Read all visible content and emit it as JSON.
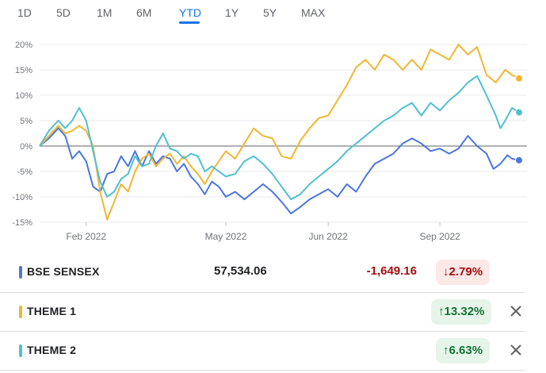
{
  "tabs": [
    {
      "label": "1D",
      "active": false
    },
    {
      "label": "5D",
      "active": false
    },
    {
      "label": "1M",
      "active": false
    },
    {
      "label": "6M",
      "active": false
    },
    {
      "label": "YTD",
      "active": true
    },
    {
      "label": "1Y",
      "active": false
    },
    {
      "label": "5Y",
      "active": false
    },
    {
      "label": "MAX",
      "active": false
    }
  ],
  "colors": {
    "sensex": "#4a76e0",
    "theme1": "#f2b632",
    "theme2": "#4fc0d0",
    "active_tab": "#1a73e8",
    "negative": "#a50e0e",
    "positive": "#137333"
  },
  "chart_data": {
    "type": "line",
    "ylim": [
      -15,
      20
    ],
    "y_ticks": [
      "20%",
      "15%",
      "10%",
      "5%",
      "0%",
      "-5%",
      "-10%",
      "-15%"
    ],
    "y_tick_values": [
      20,
      15,
      10,
      5,
      0,
      -5,
      -10,
      -15
    ],
    "x_ticks": [
      {
        "label": "Feb 2022",
        "x": 1.0
      },
      {
        "label": "May 2022",
        "x": 4.0
      },
      {
        "label": "Jun 2022",
        "x": 6.2
      },
      {
        "label": "Sep 2022",
        "x": 8.6
      }
    ],
    "x_range": [
      0,
      10.3
    ],
    "grid": true,
    "series": [
      {
        "name": "BSE SENSEX",
        "color": "#4a76e0",
        "points": [
          [
            0,
            0
          ],
          [
            0.2,
            1.5
          ],
          [
            0.4,
            3.5
          ],
          [
            0.55,
            2
          ],
          [
            0.7,
            -2.5
          ],
          [
            0.85,
            -1
          ],
          [
            1.0,
            -3
          ],
          [
            1.15,
            -8
          ],
          [
            1.3,
            -9
          ],
          [
            1.45,
            -5.5
          ],
          [
            1.6,
            -5
          ],
          [
            1.75,
            -2
          ],
          [
            1.9,
            -4
          ],
          [
            2.05,
            -1
          ],
          [
            2.2,
            -4
          ],
          [
            2.35,
            -1
          ],
          [
            2.5,
            -3.5
          ],
          [
            2.65,
            -2
          ],
          [
            2.8,
            -2.5
          ],
          [
            2.95,
            -5
          ],
          [
            3.1,
            -3.5
          ],
          [
            3.25,
            -6
          ],
          [
            3.4,
            -7.5
          ],
          [
            3.55,
            -9.5
          ],
          [
            3.7,
            -7
          ],
          [
            3.85,
            -8
          ],
          [
            4.0,
            -10
          ],
          [
            4.2,
            -9
          ],
          [
            4.4,
            -10.5
          ],
          [
            4.6,
            -9
          ],
          [
            4.8,
            -7.5
          ],
          [
            5.0,
            -9
          ],
          [
            5.2,
            -11
          ],
          [
            5.4,
            -13.3
          ],
          [
            5.6,
            -12
          ],
          [
            5.8,
            -10.5
          ],
          [
            6.0,
            -9.5
          ],
          [
            6.2,
            -8.5
          ],
          [
            6.4,
            -10
          ],
          [
            6.6,
            -7.5
          ],
          [
            6.8,
            -9
          ],
          [
            7.0,
            -6
          ],
          [
            7.2,
            -3.5
          ],
          [
            7.4,
            -2.5
          ],
          [
            7.6,
            -1.5
          ],
          [
            7.8,
            0.5
          ],
          [
            8.0,
            1.5
          ],
          [
            8.2,
            0.5
          ],
          [
            8.4,
            -1
          ],
          [
            8.6,
            -0.5
          ],
          [
            8.8,
            -1.5
          ],
          [
            9.0,
            -0.5
          ],
          [
            9.2,
            2
          ],
          [
            9.4,
            0
          ],
          [
            9.6,
            -1.5
          ],
          [
            9.75,
            -4.5
          ],
          [
            9.9,
            -3.5
          ],
          [
            10.05,
            -1.8
          ],
          [
            10.15,
            -2.5
          ],
          [
            10.3,
            -2.8
          ]
        ]
      },
      {
        "name": "THEME 1",
        "color": "#f2b632",
        "points": [
          [
            0,
            0
          ],
          [
            0.2,
            2
          ],
          [
            0.4,
            4
          ],
          [
            0.55,
            2.5
          ],
          [
            0.7,
            3
          ],
          [
            0.85,
            4
          ],
          [
            1.0,
            3
          ],
          [
            1.15,
            0
          ],
          [
            1.3,
            -9
          ],
          [
            1.45,
            -14.5
          ],
          [
            1.6,
            -11
          ],
          [
            1.75,
            -7.5
          ],
          [
            1.9,
            -9
          ],
          [
            2.05,
            -5
          ],
          [
            2.2,
            -2.5
          ],
          [
            2.35,
            -1.5
          ],
          [
            2.5,
            -4
          ],
          [
            2.65,
            -2.5
          ],
          [
            2.8,
            -1.5
          ],
          [
            2.95,
            -3.5
          ],
          [
            3.1,
            -2
          ],
          [
            3.25,
            -4
          ],
          [
            3.4,
            -5.5
          ],
          [
            3.55,
            -7.5
          ],
          [
            3.7,
            -5
          ],
          [
            3.85,
            -3
          ],
          [
            4.0,
            -1
          ],
          [
            4.2,
            -2.5
          ],
          [
            4.4,
            0.5
          ],
          [
            4.6,
            3.5
          ],
          [
            4.8,
            2
          ],
          [
            5.0,
            1.5
          ],
          [
            5.2,
            -2
          ],
          [
            5.4,
            -2.5
          ],
          [
            5.6,
            1
          ],
          [
            5.8,
            3.5
          ],
          [
            6.0,
            5.5
          ],
          [
            6.2,
            6
          ],
          [
            6.4,
            9
          ],
          [
            6.6,
            12
          ],
          [
            6.8,
            15.5
          ],
          [
            7.0,
            17
          ],
          [
            7.2,
            15
          ],
          [
            7.4,
            18
          ],
          [
            7.6,
            17
          ],
          [
            7.8,
            15
          ],
          [
            8.0,
            17
          ],
          [
            8.2,
            15
          ],
          [
            8.4,
            19
          ],
          [
            8.6,
            18
          ],
          [
            8.8,
            17
          ],
          [
            9.0,
            20
          ],
          [
            9.2,
            18
          ],
          [
            9.4,
            19.5
          ],
          [
            9.6,
            14
          ],
          [
            9.8,
            12.5
          ],
          [
            10.0,
            15
          ],
          [
            10.15,
            14
          ],
          [
            10.3,
            13.32
          ]
        ]
      },
      {
        "name": "THEME 2",
        "color": "#4fc0d0",
        "points": [
          [
            0,
            0
          ],
          [
            0.2,
            3
          ],
          [
            0.4,
            5
          ],
          [
            0.55,
            3.5
          ],
          [
            0.7,
            5
          ],
          [
            0.85,
            7.5
          ],
          [
            1.0,
            5
          ],
          [
            1.15,
            -1
          ],
          [
            1.3,
            -7
          ],
          [
            1.45,
            -10
          ],
          [
            1.6,
            -9
          ],
          [
            1.75,
            -6.5
          ],
          [
            1.9,
            -5.5
          ],
          [
            2.05,
            -2
          ],
          [
            2.2,
            -4
          ],
          [
            2.35,
            -3.5
          ],
          [
            2.5,
            0
          ],
          [
            2.65,
            2.5
          ],
          [
            2.8,
            -0.5
          ],
          [
            2.95,
            -1
          ],
          [
            3.1,
            -2.5
          ],
          [
            3.25,
            -1.5
          ],
          [
            3.4,
            -2
          ],
          [
            3.55,
            -5
          ],
          [
            3.7,
            -4
          ],
          [
            3.85,
            -5
          ],
          [
            4.0,
            -6
          ],
          [
            4.2,
            -5.5
          ],
          [
            4.4,
            -3
          ],
          [
            4.6,
            -2
          ],
          [
            4.8,
            -3.5
          ],
          [
            5.0,
            -5.5
          ],
          [
            5.2,
            -8
          ],
          [
            5.4,
            -10.5
          ],
          [
            5.6,
            -9.5
          ],
          [
            5.8,
            -7.5
          ],
          [
            6.0,
            -6
          ],
          [
            6.2,
            -4.5
          ],
          [
            6.4,
            -3
          ],
          [
            6.6,
            -1
          ],
          [
            6.8,
            0.5
          ],
          [
            7.0,
            2
          ],
          [
            7.2,
            3.5
          ],
          [
            7.4,
            5
          ],
          [
            7.6,
            6
          ],
          [
            7.8,
            7.5
          ],
          [
            8.0,
            8.5
          ],
          [
            8.2,
            6
          ],
          [
            8.4,
            8.5
          ],
          [
            8.6,
            7
          ],
          [
            8.8,
            9
          ],
          [
            9.0,
            10.5
          ],
          [
            9.2,
            12.5
          ],
          [
            9.4,
            13.8
          ],
          [
            9.6,
            10
          ],
          [
            9.8,
            6
          ],
          [
            9.9,
            3.5
          ],
          [
            10.0,
            5
          ],
          [
            10.15,
            7.5
          ],
          [
            10.3,
            6.63
          ]
        ]
      }
    ]
  },
  "rows": [
    {
      "name": "BSE SENSEX",
      "price": "57,534.06",
      "change": "-1,649.16",
      "pct": "↓2.79%",
      "direction": "down",
      "closable": false
    },
    {
      "name": "THEME 1",
      "pct": "↑13.32%",
      "direction": "up",
      "closable": true
    },
    {
      "name": "THEME 2",
      "pct": "↑6.63%",
      "direction": "up",
      "closable": true
    }
  ]
}
